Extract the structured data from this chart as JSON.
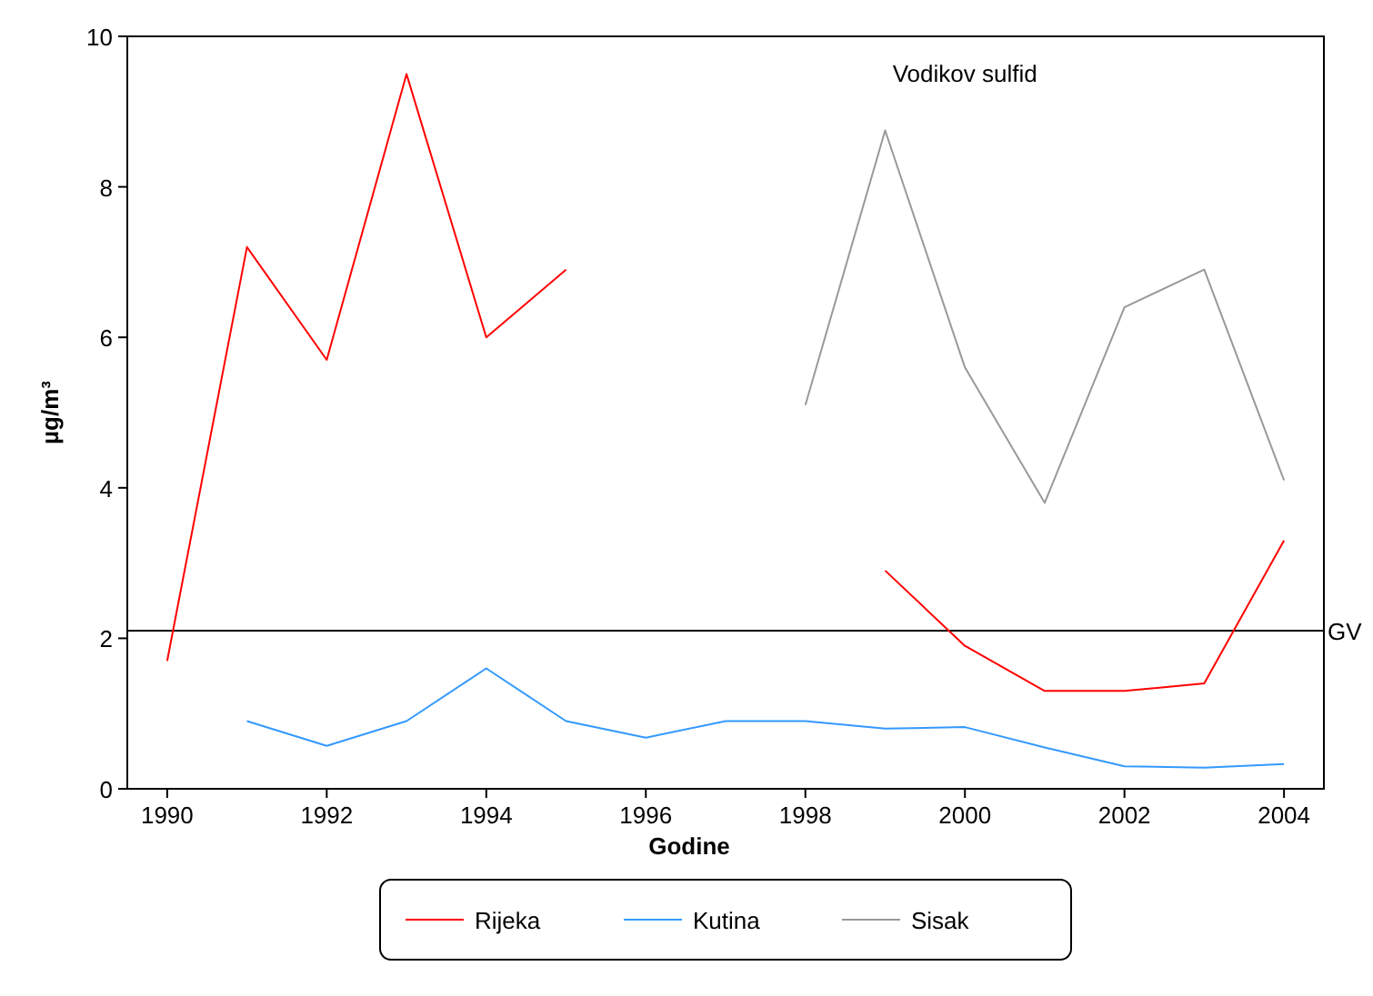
{
  "chart_data": {
    "type": "line",
    "title": "Vodikov sulfid",
    "xlabel": "Godine",
    "ylabel": "µg/m³",
    "x": [
      1990,
      1991,
      1992,
      1993,
      1994,
      1995,
      1996,
      1997,
      1998,
      1999,
      2000,
      2001,
      2002,
      2003,
      2004
    ],
    "series": [
      {
        "name": "Rijeka",
        "color": "#ff0000",
        "values": [
          1.7,
          7.2,
          5.7,
          9.5,
          6.0,
          6.9,
          null,
          null,
          null,
          2.9,
          1.9,
          1.3,
          1.3,
          1.4,
          3.3
        ]
      },
      {
        "name": "Kutina",
        "color": "#3399ff",
        "values": [
          null,
          0.9,
          0.57,
          0.9,
          1.6,
          0.9,
          0.68,
          0.9,
          0.9,
          0.8,
          0.82,
          0.55,
          0.3,
          0.28,
          0.33
        ]
      },
      {
        "name": "Sisak",
        "color": "#999999",
        "values": [
          null,
          null,
          null,
          null,
          null,
          null,
          null,
          null,
          5.1,
          8.75,
          5.6,
          3.8,
          6.4,
          6.9,
          4.1
        ]
      }
    ],
    "xlim": [
      1989.5,
      2004.5
    ],
    "xticks": [
      1990,
      1992,
      1994,
      1996,
      1998,
      2000,
      2002,
      2004
    ],
    "ylim": [
      0,
      10
    ],
    "yticks": [
      0,
      2,
      4,
      6,
      8,
      10
    ],
    "ref_lines": [
      {
        "axis": "y",
        "value": 2.1,
        "label": "GV",
        "color": "#000000"
      }
    ],
    "legend": "bottom",
    "grid": false,
    "marker": "none",
    "line_style": "solid"
  }
}
